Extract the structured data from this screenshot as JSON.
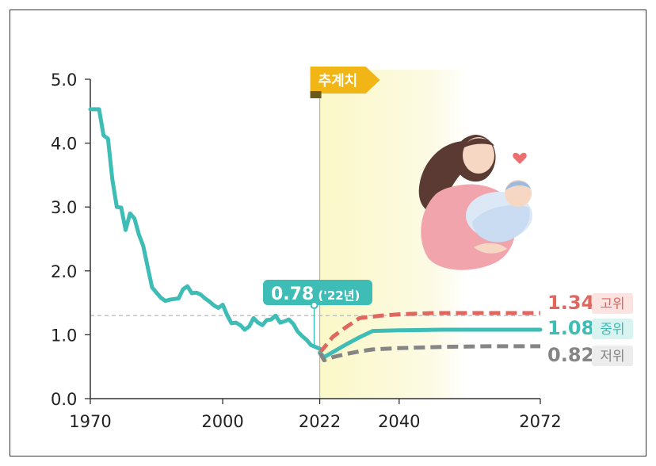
{
  "chart_data": {
    "type": "line",
    "x_ticks": [
      1970,
      2000,
      2022,
      2040,
      2072
    ],
    "y_ticks": [
      "0.0",
      "1.0",
      "2.0",
      "3.0",
      "4.0",
      "5.0"
    ],
    "xlim": [
      1970,
      2072
    ],
    "ylim": [
      0,
      5
    ],
    "projection_label": "추계치",
    "projection_start": 2022,
    "reference_line": 1.3,
    "annotation": {
      "value": "0.78",
      "suffix": "('22년)",
      "x": 2022,
      "y": 0.78
    },
    "series": [
      {
        "key": "historical",
        "color": "#3dbdb5",
        "dashed": false,
        "x": [
          1970,
          1972,
          1973,
          1974,
          1975,
          1976,
          1977,
          1978,
          1979,
          1980,
          1981,
          1982,
          1983,
          1984,
          1985,
          1986,
          1987,
          1988,
          1989,
          1990,
          1991,
          1992,
          1993,
          1994,
          1995,
          1996,
          1997,
          1998,
          1999,
          2000,
          2001,
          2002,
          2003,
          2004,
          2005,
          2006,
          2007,
          2008,
          2009,
          2010,
          2011,
          2012,
          2013,
          2014,
          2015,
          2016,
          2017,
          2018,
          2019,
          2020,
          2021,
          2022
        ],
        "y": [
          4.53,
          4.53,
          4.12,
          4.07,
          3.43,
          3.0,
          2.99,
          2.64,
          2.9,
          2.82,
          2.57,
          2.39,
          2.06,
          1.74,
          1.66,
          1.58,
          1.53,
          1.55,
          1.56,
          1.57,
          1.71,
          1.76,
          1.65,
          1.66,
          1.63,
          1.57,
          1.52,
          1.46,
          1.42,
          1.47,
          1.31,
          1.18,
          1.19,
          1.15,
          1.08,
          1.13,
          1.26,
          1.19,
          1.15,
          1.23,
          1.24,
          1.3,
          1.19,
          1.21,
          1.24,
          1.17,
          1.05,
          0.98,
          0.92,
          0.84,
          0.81,
          0.78
        ]
      },
      {
        "key": "high",
        "name": "고위",
        "label": "1.34",
        "color": "#e0675f",
        "dashed": true,
        "x": [
          2022,
          2023,
          2025,
          2028,
          2031,
          2036,
          2040,
          2048,
          2060,
          2072
        ],
        "y": [
          0.72,
          0.8,
          0.97,
          1.12,
          1.26,
          1.3,
          1.32,
          1.34,
          1.34,
          1.34
        ]
      },
      {
        "key": "mid",
        "name": "중위",
        "label": "1.08",
        "color": "#3dbdb5",
        "dashed": false,
        "x": [
          2022,
          2023,
          2025,
          2028,
          2031,
          2034,
          2040,
          2050,
          2060,
          2072
        ],
        "y": [
          0.72,
          0.65,
          0.73,
          0.85,
          0.96,
          1.06,
          1.07,
          1.08,
          1.08,
          1.08
        ]
      },
      {
        "key": "low",
        "name": "저위",
        "label": "0.82",
        "color": "#858585",
        "dashed": true,
        "x": [
          2022,
          2023,
          2025,
          2028,
          2031,
          2034,
          2040,
          2050,
          2060,
          2072
        ],
        "y": [
          0.72,
          0.6,
          0.65,
          0.7,
          0.74,
          0.77,
          0.79,
          0.81,
          0.82,
          0.82
        ]
      }
    ],
    "colors": {
      "axis": "#333333",
      "badge": "#3dbdb5",
      "arrow": "#f2b516",
      "projection_bg": "#fbf9d3"
    }
  }
}
